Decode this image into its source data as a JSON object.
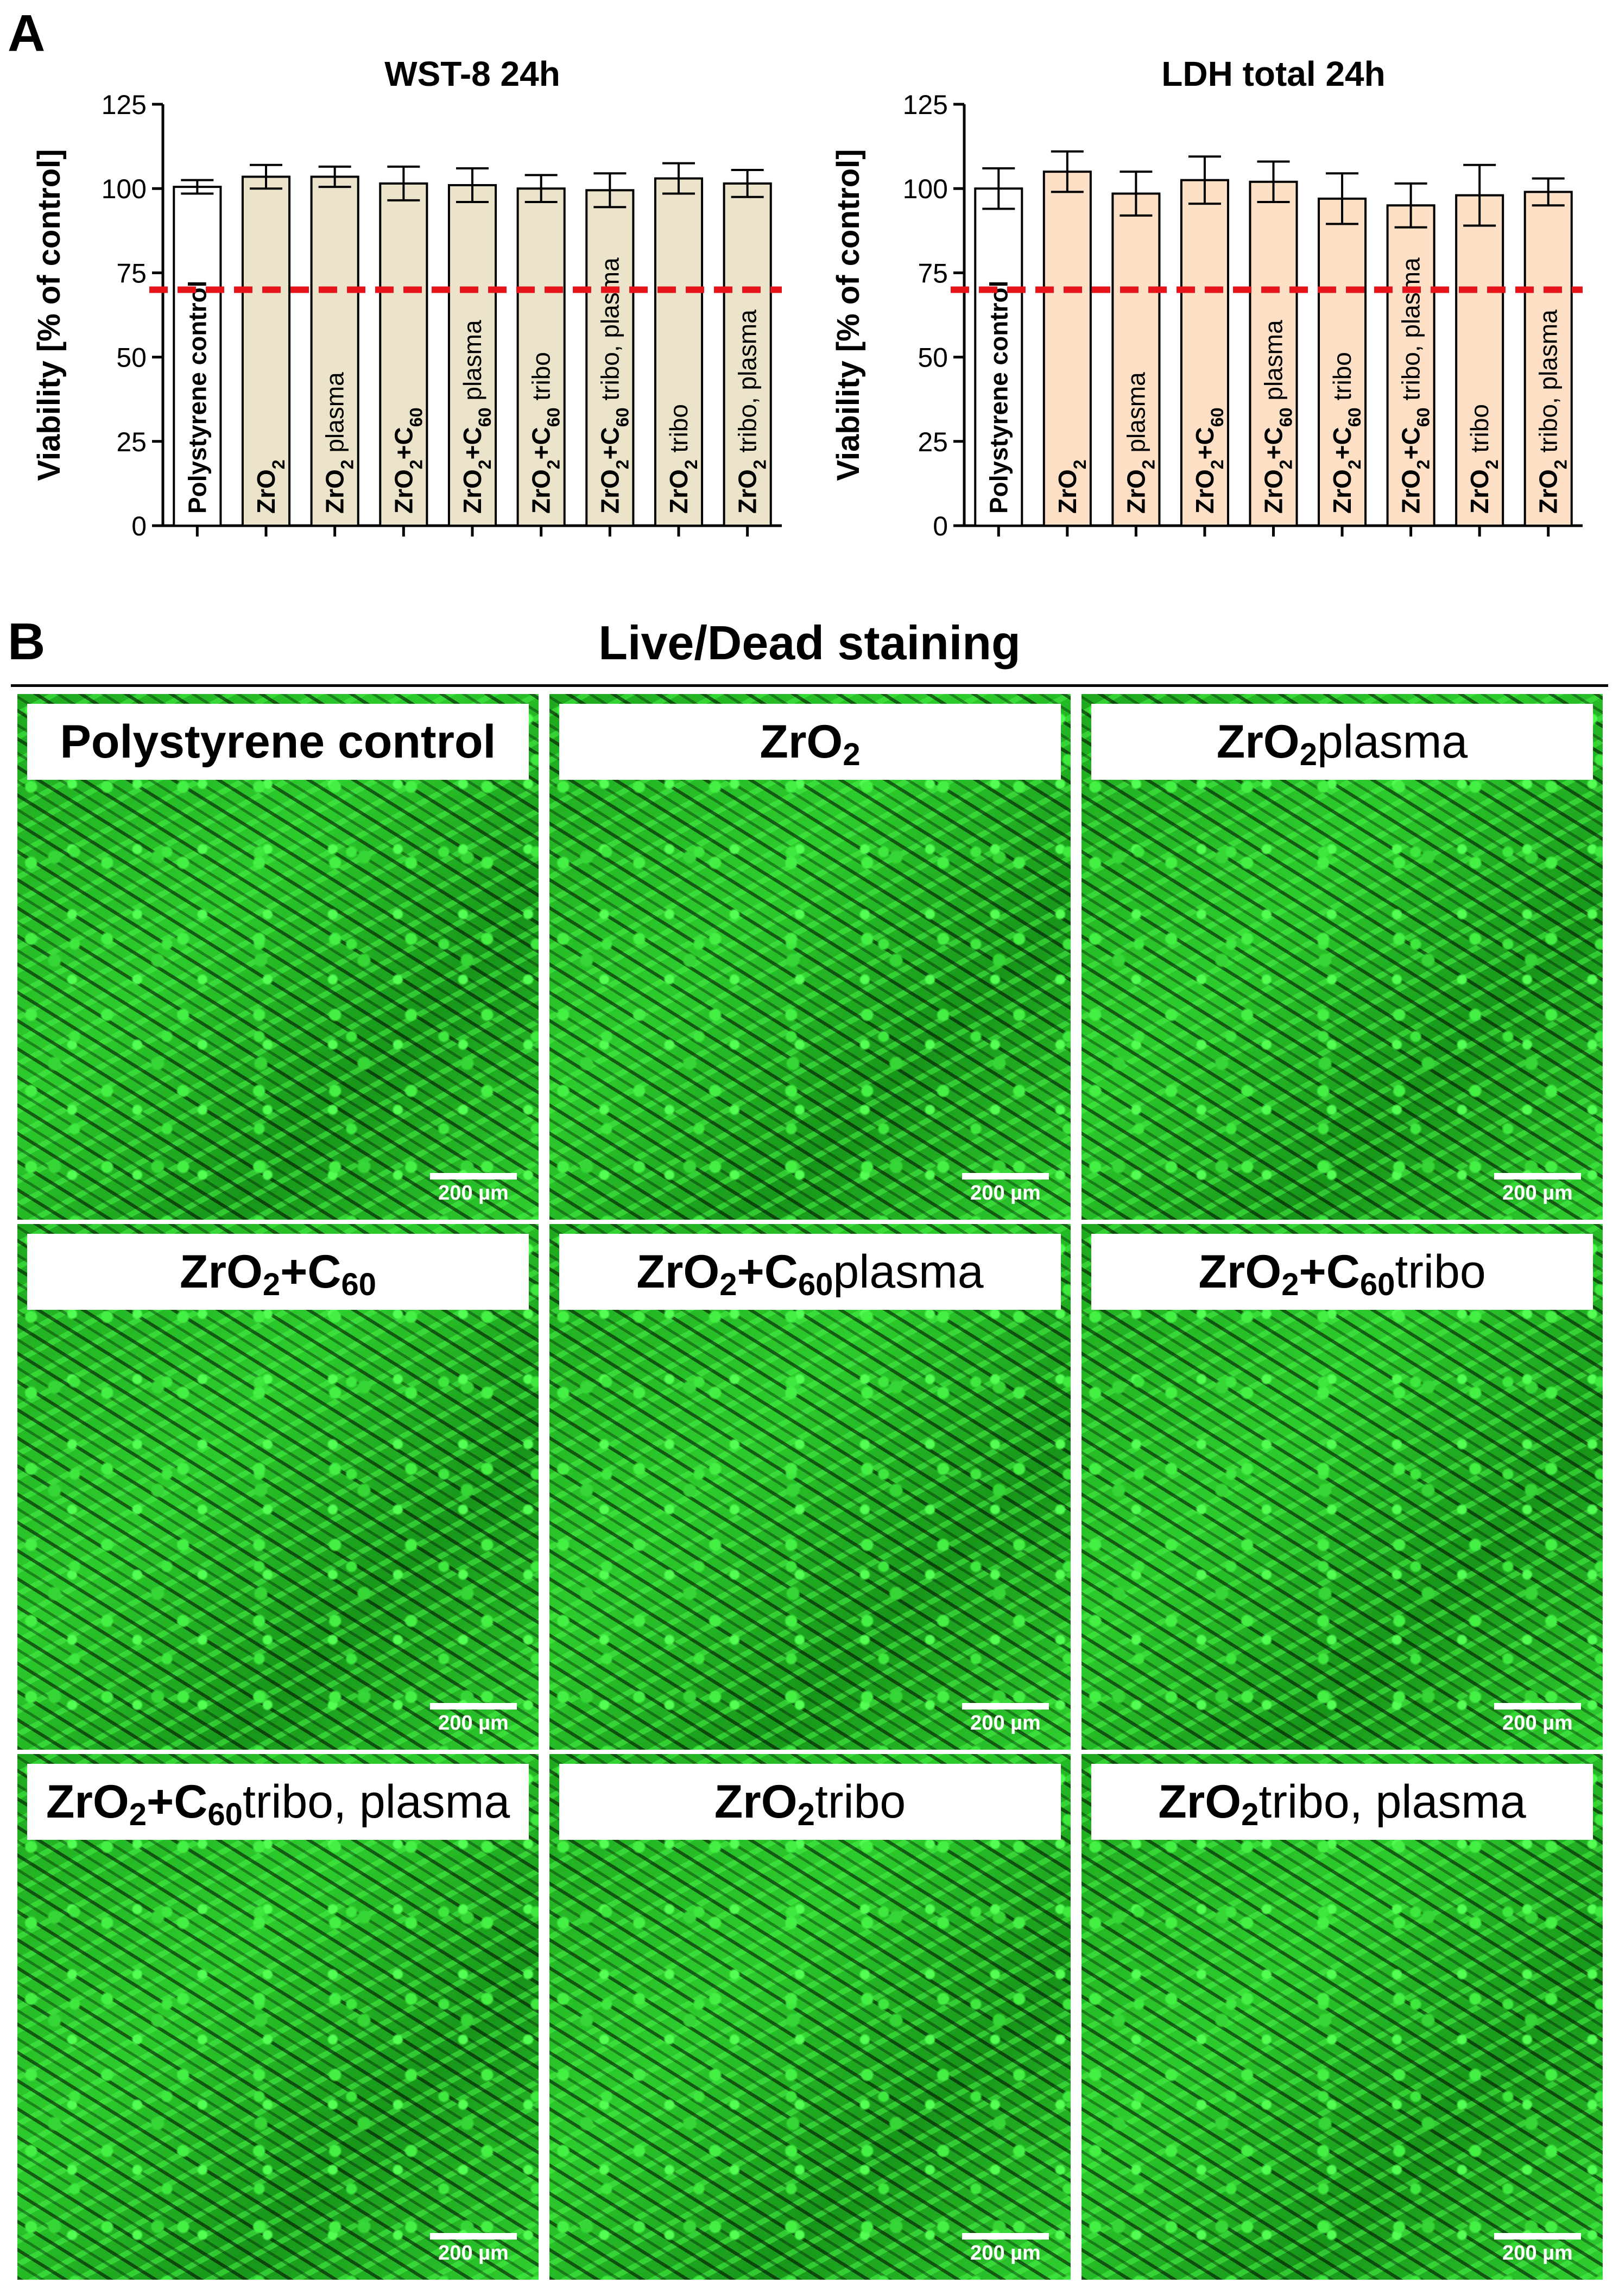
{
  "panel_a_letter": "A",
  "panel_b_letter": "B",
  "chart_data": [
    {
      "type": "bar",
      "title": "WST-8 24h",
      "ylabel": "Viability [% of control]",
      "xlabel": "",
      "ylim": [
        0,
        125
      ],
      "yticks": [
        0,
        25,
        50,
        75,
        100,
        125
      ],
      "threshold": 70,
      "threshold_color": "#e8141c",
      "control_color": "#ffffff",
      "bar_color": "#ebe4cb",
      "categories": [
        "Polystyrene control",
        "ZrO2",
        "ZrO2 plasma",
        "ZrO2+C60",
        "ZrO2+C60 plasma",
        "ZrO2+C60 tribo",
        "ZrO2+C60 tribo, plasma",
        "ZrO2 tribo",
        "ZrO2 tribo, plasma"
      ],
      "values": [
        100.5,
        103.5,
        103.5,
        101.5,
        101,
        100,
        99.5,
        103,
        101.5
      ],
      "errors": [
        2,
        3.5,
        3,
        5,
        5,
        4,
        5,
        4.5,
        4
      ]
    },
    {
      "type": "bar",
      "title": "LDH total 24h",
      "ylabel": "Viability [% of control]",
      "xlabel": "",
      "ylim": [
        0,
        125
      ],
      "yticks": [
        0,
        25,
        50,
        75,
        100,
        125
      ],
      "threshold": 70,
      "threshold_color": "#e8141c",
      "control_color": "#ffffff",
      "bar_color": "#fde0c6",
      "categories": [
        "Polystyrene control",
        "ZrO2",
        "ZrO2 plasma",
        "ZrO2+C60",
        "ZrO2+C60 plasma",
        "ZrO2+C60 tribo",
        "ZrO2+C60 tribo, plasma",
        "ZrO2 tribo",
        "ZrO2 tribo, plasma"
      ],
      "values": [
        100,
        105,
        98.5,
        102.5,
        102,
        97,
        95,
        98,
        99
      ],
      "errors": [
        6,
        6,
        6.5,
        7,
        6,
        7.5,
        6.5,
        9,
        4
      ]
    }
  ],
  "live_dead": {
    "title": "Live/Dead staining",
    "scale_label": "200 µm",
    "tiles": [
      {
        "label": "Polystyrene control",
        "texture": "sparse"
      },
      {
        "label": "ZrO2",
        "texture": "dense"
      },
      {
        "label": "ZrO2 plasma",
        "texture": "normal"
      },
      {
        "label": "ZrO2+C60",
        "texture": "dense"
      },
      {
        "label": "ZrO2+C60 plasma",
        "texture": "normal"
      },
      {
        "label": "ZrO2+C60 tribo",
        "texture": "dense"
      },
      {
        "label": "ZrO2+C60 tribo, plasma",
        "texture": "dense"
      },
      {
        "label": "ZrO2 tribo",
        "texture": "sparse"
      },
      {
        "label": "ZrO2 tribo, plasma",
        "texture": "normal"
      }
    ]
  }
}
